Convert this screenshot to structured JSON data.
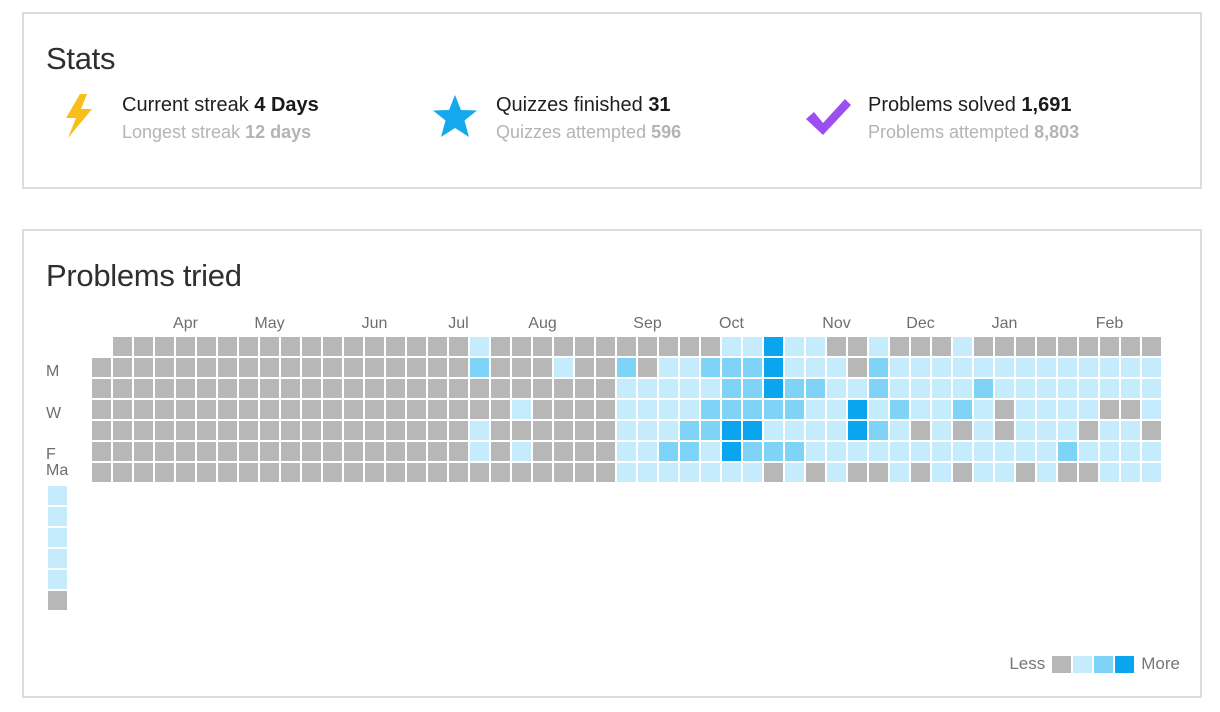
{
  "stats": {
    "title": "Stats",
    "streak": {
      "icon": "lightning-bolt-icon",
      "label": "Current streak",
      "value": "4 Days",
      "sub_label": "Longest streak",
      "sub_value": "12 days"
    },
    "quizzes": {
      "icon": "star-icon",
      "label": "Quizzes finished",
      "value": "31",
      "sub_label": "Quizzes attempted",
      "sub_value": "596"
    },
    "problems": {
      "icon": "checkmark-icon",
      "label": "Problems solved",
      "value": "1,691",
      "sub_label": "Problems attempted",
      "sub_value": "8,803"
    }
  },
  "activity": {
    "title": "Problems tried",
    "months": [
      "Apr",
      "May",
      "Jun",
      "Jul",
      "Aug",
      "Sep",
      "Oct",
      "Nov",
      "Dec",
      "Jan",
      "Feb"
    ],
    "day_labels": [
      "M",
      "W",
      "F",
      "Ma"
    ],
    "legend_less": "Less",
    "legend_more": "More",
    "level_colors": [
      "#b7b7b7",
      "#c5ecfd",
      "#7ed3f6",
      "#0aa5ef"
    ],
    "grid_rows": [
      "..................0.......0..00001....0000",
      ".................1..1.11...1..0...........",
      ".................0.1...2..1.0............",
      "...........0.....0......1...1..0.........",
      ".................0........00..............",
      ".................0......1..0..............",
      "...........0.......1.......1.1.0...0.....",
      "...........00....0.....1.00.1..0.0.0.0.0.",
      ".........................................."
    ]
  },
  "chart_data": {
    "type": "heatmap",
    "title": "Problems tried",
    "levels": [
      "none",
      "low",
      "medium",
      "high"
    ],
    "columns": 51,
    "rows": 7,
    "month_labels": [
      "Apr",
      "May",
      "Jun",
      "Jul",
      "Aug",
      "Sep",
      "Oct",
      "Nov",
      "Dec",
      "Jan",
      "Feb"
    ],
    "weeks": [
      [
        0,
        0,
        0,
        0,
        0,
        0,
        0
      ],
      [
        0,
        0,
        0,
        0,
        0,
        0,
        0
      ],
      [
        0,
        0,
        0,
        0,
        0,
        0,
        0
      ],
      [
        0,
        0,
        0,
        0,
        0,
        0,
        0
      ],
      [
        0,
        0,
        0,
        0,
        0,
        0,
        0
      ],
      [
        0,
        0,
        0,
        0,
        0,
        0,
        0
      ],
      [
        0,
        0,
        0,
        0,
        0,
        0,
        0
      ],
      [
        0,
        0,
        0,
        0,
        0,
        0,
        0
      ],
      [
        0,
        0,
        0,
        0,
        0,
        0,
        0
      ],
      [
        0,
        0,
        0,
        0,
        0,
        0,
        0
      ],
      [
        0,
        0,
        0,
        0,
        0,
        0,
        0
      ],
      [
        0,
        0,
        0,
        0,
        0,
        0,
        0
      ],
      [
        0,
        0,
        0,
        0,
        0,
        0,
        0
      ],
      [
        0,
        0,
        0,
        0,
        0,
        0,
        0
      ],
      [
        0,
        0,
        0,
        0,
        0,
        0,
        0
      ],
      [
        0,
        0,
        0,
        0,
        0,
        0,
        0
      ],
      [
        0,
        0,
        0,
        0,
        0,
        0,
        0
      ],
      [
        0,
        0,
        0,
        0,
        0,
        0,
        0
      ],
      [
        1,
        2,
        0,
        0,
        1,
        1,
        0
      ],
      [
        0,
        0,
        0,
        0,
        0,
        0,
        0
      ],
      [
        0,
        0,
        0,
        1,
        0,
        1,
        0
      ],
      [
        0,
        0,
        0,
        0,
        0,
        0,
        0
      ],
      [
        0,
        1,
        0,
        0,
        0,
        0,
        0
      ],
      [
        0,
        0,
        0,
        0,
        0,
        0,
        0
      ],
      [
        0,
        0,
        0,
        0,
        0,
        0,
        0
      ],
      [
        0,
        2,
        1,
        1,
        1,
        1,
        1
      ],
      [
        0,
        0,
        1,
        1,
        1,
        1,
        1
      ],
      [
        0,
        1,
        1,
        1,
        1,
        2,
        1
      ],
      [
        0,
        1,
        1,
        1,
        2,
        2,
        1
      ],
      [
        0,
        2,
        1,
        2,
        2,
        1,
        1
      ],
      [
        1,
        2,
        2,
        2,
        3,
        3,
        1
      ],
      [
        1,
        2,
        2,
        2,
        3,
        2,
        1
      ],
      [
        3,
        3,
        3,
        2,
        1,
        2,
        0
      ],
      [
        1,
        1,
        2,
        2,
        1,
        2,
        1
      ],
      [
        1,
        1,
        2,
        1,
        1,
        1,
        0
      ],
      [
        0,
        1,
        1,
        1,
        1,
        1,
        1
      ],
      [
        0,
        0,
        1,
        3,
        3,
        1,
        0
      ],
      [
        1,
        2,
        2,
        1,
        2,
        1,
        0
      ],
      [
        0,
        1,
        1,
        2,
        1,
        1,
        1
      ],
      [
        0,
        1,
        1,
        1,
        0,
        1,
        0
      ],
      [
        0,
        1,
        1,
        1,
        1,
        1,
        1
      ],
      [
        1,
        1,
        1,
        2,
        0,
        1,
        0
      ],
      [
        0,
        1,
        2,
        1,
        1,
        1,
        1
      ],
      [
        0,
        1,
        1,
        0,
        0,
        1,
        1
      ],
      [
        0,
        1,
        1,
        1,
        1,
        1,
        0
      ],
      [
        0,
        1,
        1,
        1,
        1,
        1,
        1
      ],
      [
        0,
        1,
        1,
        1,
        1,
        2,
        0
      ],
      [
        0,
        1,
        1,
        1,
        0,
        1,
        0
      ],
      [
        0,
        1,
        1,
        0,
        1,
        1,
        1
      ],
      [
        0,
        1,
        1,
        0,
        1,
        1,
        1
      ],
      [
        0,
        1,
        1,
        1,
        0,
        1,
        1
      ]
    ]
  }
}
